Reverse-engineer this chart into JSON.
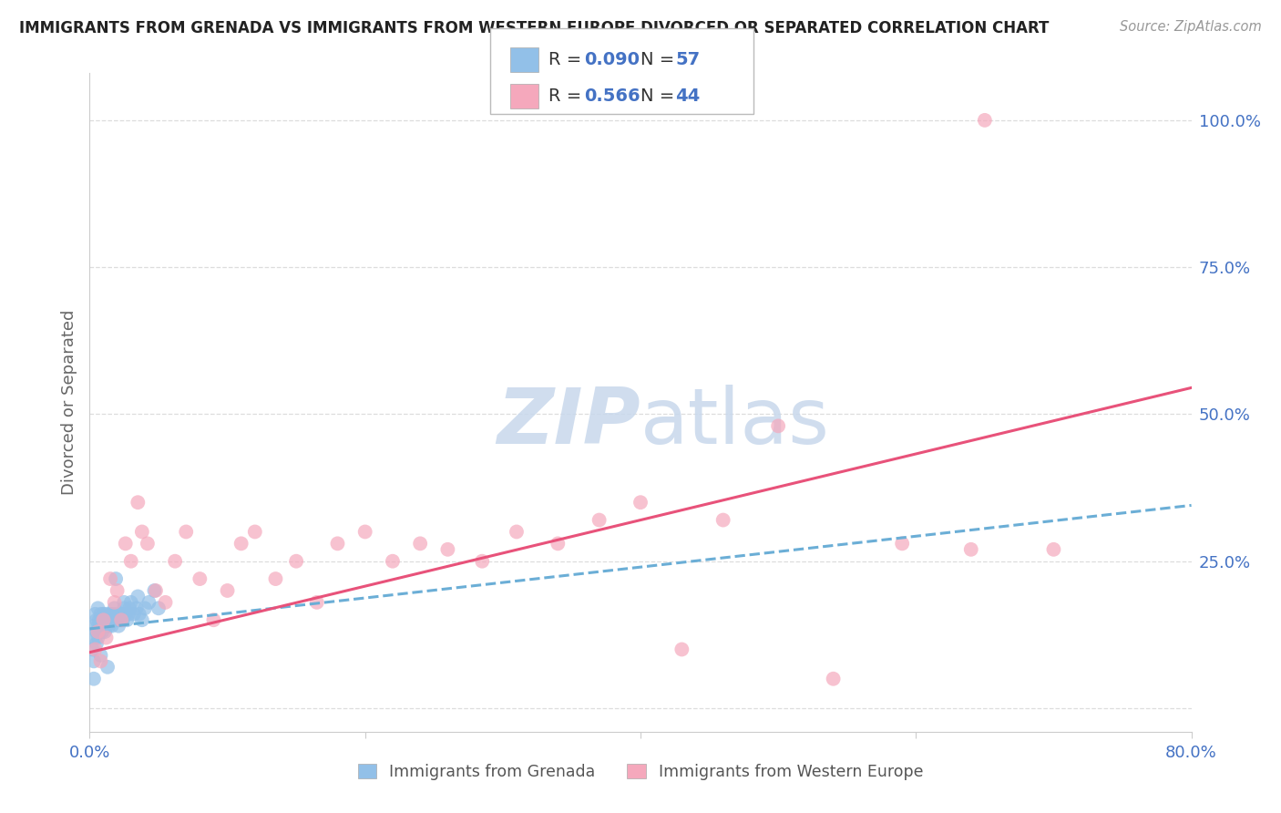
{
  "title": "IMMIGRANTS FROM GRENADA VS IMMIGRANTS FROM WESTERN EUROPE DIVORCED OR SEPARATED CORRELATION CHART",
  "source": "Source: ZipAtlas.com",
  "ylabel": "Divorced or Separated",
  "xlim": [
    0.0,
    0.8
  ],
  "ylim": [
    -0.04,
    1.08
  ],
  "yticks": [
    0.0,
    0.25,
    0.5,
    0.75,
    1.0
  ],
  "ytick_labels": [
    "",
    "25.0%",
    "50.0%",
    "75.0%",
    "100.0%"
  ],
  "xtick_positions": [
    0.0,
    0.2,
    0.4,
    0.6,
    0.8
  ],
  "xtick_labels": [
    "0.0%",
    "",
    "",
    "",
    "80.0%"
  ],
  "grenada_R": 0.09,
  "grenada_N": 57,
  "western_europe_R": 0.566,
  "western_europe_N": 44,
  "blue_color": "#92C0E8",
  "pink_color": "#F5A8BC",
  "blue_line_color": "#6BAED6",
  "pink_line_color": "#E8527A",
  "accent_color": "#4472C4",
  "title_color": "#222222",
  "source_color": "#999999",
  "ylabel_color": "#666666",
  "ytick_color": "#4472C4",
  "grid_color": "#DDDDDD",
  "watermark_color": "#C8D8EC",
  "blue_x": [
    0.002,
    0.003,
    0.003,
    0.004,
    0.004,
    0.005,
    0.005,
    0.005,
    0.006,
    0.006,
    0.006,
    0.007,
    0.007,
    0.008,
    0.008,
    0.009,
    0.009,
    0.01,
    0.01,
    0.011,
    0.011,
    0.012,
    0.012,
    0.013,
    0.014,
    0.015,
    0.015,
    0.016,
    0.017,
    0.018,
    0.018,
    0.019,
    0.02,
    0.021,
    0.022,
    0.023,
    0.024,
    0.025,
    0.026,
    0.027,
    0.028,
    0.029,
    0.03,
    0.032,
    0.034,
    0.036,
    0.038,
    0.04,
    0.043,
    0.047,
    0.003,
    0.008,
    0.013,
    0.019,
    0.025,
    0.035,
    0.05
  ],
  "blue_y": [
    0.1,
    0.14,
    0.08,
    0.12,
    0.16,
    0.13,
    0.15,
    0.11,
    0.14,
    0.12,
    0.17,
    0.13,
    0.15,
    0.16,
    0.14,
    0.15,
    0.13,
    0.16,
    0.14,
    0.15,
    0.13,
    0.16,
    0.14,
    0.15,
    0.14,
    0.16,
    0.15,
    0.14,
    0.16,
    0.15,
    0.17,
    0.15,
    0.16,
    0.14,
    0.15,
    0.16,
    0.15,
    0.17,
    0.16,
    0.15,
    0.16,
    0.17,
    0.18,
    0.16,
    0.17,
    0.16,
    0.15,
    0.17,
    0.18,
    0.2,
    0.05,
    0.09,
    0.07,
    0.22,
    0.18,
    0.19,
    0.17
  ],
  "pink_x": [
    0.004,
    0.006,
    0.008,
    0.01,
    0.012,
    0.015,
    0.018,
    0.02,
    0.023,
    0.026,
    0.03,
    0.035,
    0.038,
    0.042,
    0.048,
    0.055,
    0.062,
    0.07,
    0.08,
    0.09,
    0.1,
    0.11,
    0.12,
    0.135,
    0.15,
    0.165,
    0.18,
    0.2,
    0.22,
    0.24,
    0.26,
    0.285,
    0.31,
    0.34,
    0.37,
    0.4,
    0.43,
    0.46,
    0.5,
    0.54,
    0.59,
    0.64,
    0.7,
    0.65
  ],
  "pink_y": [
    0.1,
    0.13,
    0.08,
    0.15,
    0.12,
    0.22,
    0.18,
    0.2,
    0.15,
    0.28,
    0.25,
    0.35,
    0.3,
    0.28,
    0.2,
    0.18,
    0.25,
    0.3,
    0.22,
    0.15,
    0.2,
    0.28,
    0.3,
    0.22,
    0.25,
    0.18,
    0.28,
    0.3,
    0.25,
    0.28,
    0.27,
    0.25,
    0.3,
    0.28,
    0.32,
    0.35,
    0.1,
    0.32,
    0.48,
    0.05,
    0.28,
    0.27,
    0.27,
    1.0
  ],
  "blue_regress_x0": 0.0,
  "blue_regress_y0": 0.135,
  "blue_regress_x1": 0.8,
  "blue_regress_y1": 0.345,
  "pink_regress_x0": 0.0,
  "pink_regress_y0": 0.095,
  "pink_regress_x1": 0.8,
  "pink_regress_y1": 0.545
}
